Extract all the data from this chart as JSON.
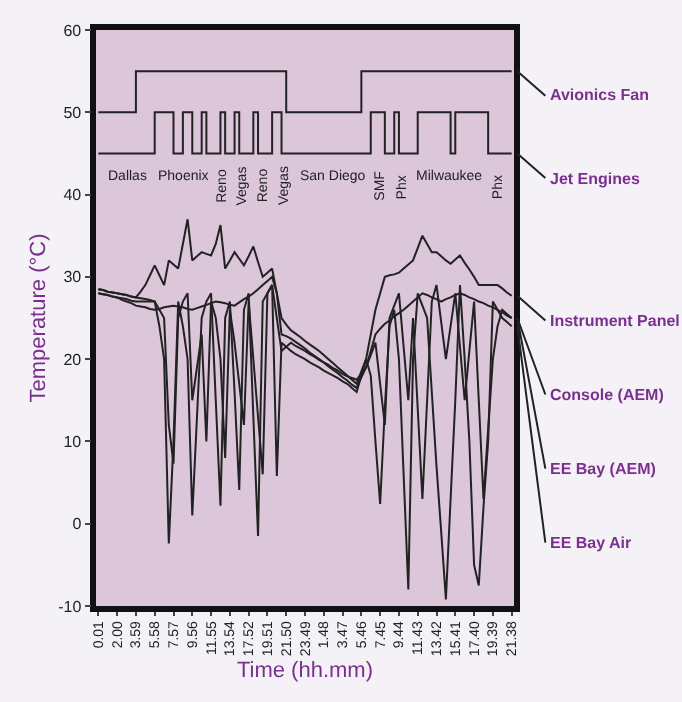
{
  "chart_data": {
    "type": "line",
    "xlabel": "Time (hh.mm)",
    "ylabel": "Temperature (°C)",
    "ylim": [
      -10,
      60
    ],
    "yticks": [
      -10,
      0,
      10,
      20,
      30,
      40,
      50,
      60
    ],
    "categories": [
      "0.01",
      null,
      null,
      null,
      "2.00",
      null,
      null,
      null,
      "3.59",
      null,
      null,
      null,
      "5.58",
      null,
      null,
      null,
      "7.57",
      null,
      null,
      null,
      "9.56",
      null,
      null,
      null,
      "11.55",
      null,
      null,
      null,
      "13.54",
      null,
      null,
      null,
      "17.52",
      null,
      null,
      null,
      "19.51",
      null,
      null,
      null,
      "21.50",
      null,
      null,
      null,
      "23.49",
      null,
      null,
      null,
      "1.48",
      null,
      null,
      null,
      "3.47",
      null,
      null,
      null,
      "5.46",
      null,
      null,
      null,
      "7.45",
      null,
      null,
      null,
      "9.44",
      null,
      null,
      null,
      "11.43",
      null,
      null,
      null,
      "13.42",
      null,
      null,
      null,
      "15.41",
      null,
      null,
      null,
      "17.40",
      null,
      null,
      null,
      "19.39",
      null,
      null,
      null,
      "21.38"
    ],
    "series": [
      {
        "name": "Avionics Fan",
        "type": "step",
        "color": "#222222",
        "values": [
          50,
          50,
          50,
          50,
          50,
          50,
          50,
          50,
          55,
          55,
          55,
          55,
          55,
          55,
          55,
          55,
          55,
          55,
          55,
          55,
          55,
          55,
          55,
          55,
          55,
          55,
          55,
          55,
          55,
          55,
          55,
          55,
          55,
          55,
          55,
          55,
          55,
          55,
          55,
          55,
          50,
          50,
          50,
          50,
          50,
          50,
          50,
          50,
          50,
          50,
          50,
          50,
          50,
          50,
          50,
          50,
          55,
          55,
          55,
          55,
          55,
          55,
          55,
          55,
          55,
          55,
          55,
          55,
          55,
          55,
          55,
          55,
          55,
          55,
          55,
          55,
          55,
          55,
          55,
          55,
          55,
          55,
          55,
          55,
          55,
          55,
          55,
          55,
          55
        ]
      },
      {
        "name": "Jet Engines",
        "type": "step",
        "color": "#222222",
        "values": [
          45,
          45,
          45,
          45,
          45,
          45,
          45,
          45,
          45,
          45,
          45,
          45,
          50,
          50,
          50,
          50,
          45,
          45,
          50,
          50,
          45,
          45,
          50,
          45,
          45,
          45,
          50,
          45,
          45,
          50,
          45,
          45,
          45,
          50,
          45,
          45,
          45,
          50,
          50,
          45,
          45,
          45,
          45,
          45,
          45,
          45,
          45,
          45,
          45,
          45,
          45,
          45,
          45,
          45,
          45,
          45,
          45,
          45,
          50,
          50,
          50,
          45,
          45,
          50,
          45,
          45,
          45,
          45,
          50,
          50,
          50,
          50,
          50,
          50,
          50,
          45,
          50,
          50,
          50,
          50,
          50,
          50,
          50,
          45,
          45,
          45,
          45,
          45,
          45
        ]
      },
      {
        "name": "Instrument Panel",
        "color": "#222222",
        "values": [
          28.5,
          28.4,
          28.2,
          28.1,
          28,
          27.9,
          27.8,
          27.6,
          27.5,
          28.2,
          29,
          30.2,
          31.4,
          30.2,
          29,
          32,
          31.5,
          31,
          34,
          37,
          32,
          32.5,
          33,
          32.8,
          32.6,
          34,
          36.3,
          31,
          32,
          33,
          32.2,
          31.4,
          32.5,
          33.7,
          31.8,
          30,
          30.5,
          31,
          28,
          25,
          24.2,
          23.5,
          23.1,
          22.7,
          22.2,
          21.8,
          21.4,
          21,
          20.5,
          20,
          19.5,
          19,
          18.5,
          18,
          17.5,
          17,
          18.5,
          20,
          23,
          26,
          28,
          30,
          30.2,
          30.3,
          30.5,
          31,
          31.5,
          32,
          33.5,
          35,
          34,
          33,
          33,
          32.5,
          32,
          31.6,
          32.1,
          32.6,
          31.7,
          30.9,
          30,
          29,
          29,
          29,
          29,
          29,
          28.6,
          28.1,
          27.7
        ]
      },
      {
        "name": "Console (AEM)",
        "color": "#222222",
        "values": [
          28,
          27.9,
          27.8,
          27.6,
          27.5,
          27.2,
          27,
          26.8,
          26.5,
          26.4,
          26.3,
          26.1,
          26,
          26.1,
          26.3,
          26.4,
          26.5,
          26.4,
          26.3,
          26.1,
          26,
          26.2,
          26.4,
          26.6,
          26.8,
          27,
          26.9,
          26.8,
          26.6,
          26.5,
          26.9,
          27.3,
          27.6,
          28,
          28.5,
          29,
          29.5,
          30,
          28,
          23,
          22.8,
          22.5,
          22.1,
          21.7,
          21.3,
          20.8,
          20.4,
          20,
          19.6,
          19.1,
          18.7,
          18.3,
          17.8,
          17.4,
          16.9,
          16.5,
          17.8,
          19,
          21,
          23,
          23.7,
          24.3,
          24.7,
          25.2,
          25.6,
          26,
          26.5,
          27,
          27.5,
          28,
          27.8,
          27.5,
          27.3,
          27,
          27.3,
          27.5,
          27.8,
          28,
          27.8,
          27.5,
          27.3,
          27,
          26.8,
          26.5,
          26.3,
          26,
          25.7,
          25.3,
          25
        ]
      },
      {
        "name": "EE Bay (AEM)",
        "color": "#222222",
        "values": [
          28.5,
          28.4,
          28.2,
          28.1,
          28,
          27.9,
          27.8,
          27.6,
          27.5,
          27.4,
          27.3,
          27.2,
          27,
          26,
          25,
          12,
          7.3,
          25,
          27,
          28,
          15,
          19,
          23,
          10,
          27,
          25,
          20,
          8,
          26,
          22,
          17,
          12,
          27,
          20,
          13,
          6,
          28,
          29,
          25,
          21,
          21.5,
          22,
          21.6,
          21.3,
          21,
          20.6,
          20.3,
          19.9,
          19.6,
          19.3,
          18.9,
          18.6,
          18.2,
          17.9,
          17.7,
          17.5,
          18.2,
          19,
          20.5,
          22,
          17,
          12,
          25,
          26.5,
          28,
          21.5,
          15,
          25,
          14,
          3,
          15,
          27,
          29,
          24.5,
          20,
          24,
          28,
          21.5,
          15,
          21,
          27,
          15,
          3,
          11.5,
          20,
          24,
          26,
          25.5,
          25
        ]
      },
      {
        "name": "EE Bay Air",
        "color": "#222222",
        "values": [
          28,
          27.9,
          27.8,
          27.6,
          27.5,
          27.4,
          27.3,
          27.1,
          27,
          27,
          27,
          27,
          27,
          24,
          20,
          -2.4,
          10,
          27,
          24,
          20,
          1,
          13,
          25,
          27,
          28,
          15,
          2.2,
          25,
          27,
          16,
          4.1,
          26,
          28,
          13,
          -1.5,
          27,
          28,
          29,
          5.8,
          22,
          21.5,
          21,
          20.6,
          20.3,
          20,
          19.6,
          19.3,
          19,
          18.6,
          18.3,
          18,
          17.7,
          17.3,
          17,
          16.5,
          16,
          18,
          20,
          18,
          10,
          2.4,
          14,
          24,
          26,
          20,
          6,
          -8,
          20,
          28,
          26.5,
          25,
          16,
          7,
          -1,
          -9.2,
          3,
          15,
          29,
          20,
          10,
          -5,
          -7.5,
          2,
          10,
          27,
          26,
          25,
          24.5,
          24
        ]
      }
    ],
    "annotations": [
      "Dallas",
      "Phoenix",
      "Reno",
      "Vegas",
      "Reno",
      "Vegas",
      "San Diego",
      "SMF",
      "Phx",
      "Milwaukee",
      "Phx"
    ]
  }
}
